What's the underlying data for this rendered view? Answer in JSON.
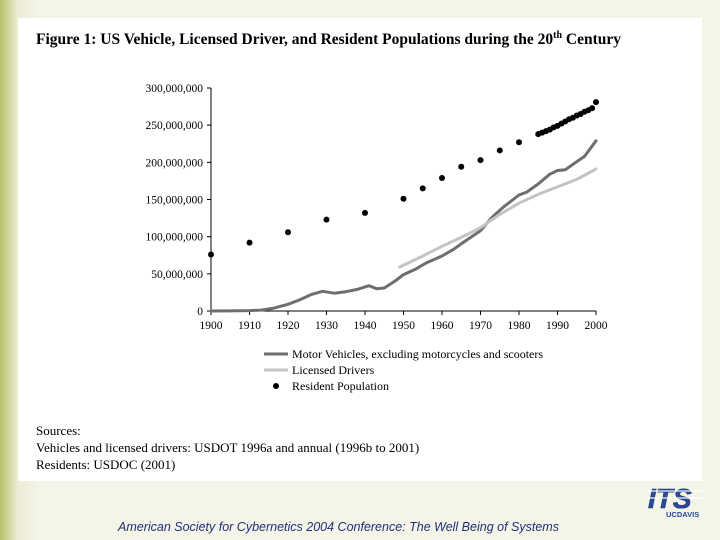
{
  "title": {
    "prefix": "Figure 1: US Vehicle, Licensed Driver, and Resident Populations during the 20",
    "superscript": "th",
    "suffix": " Century"
  },
  "chart_data": {
    "type": "line",
    "title": "Figure 1: US Vehicle, Licensed Driver, and Resident Populations during the 20th Century",
    "xlabel": "",
    "ylabel": "",
    "xlim": [
      1900,
      2000
    ],
    "ylim": [
      0,
      300000000
    ],
    "x_ticks": [
      "1900",
      "1910",
      "1920",
      "1930",
      "1940",
      "1950",
      "1960",
      "1970",
      "1980",
      "1990",
      "2000"
    ],
    "y_ticks": [
      "0",
      "50,000,000",
      "100,000,000",
      "150,000,000",
      "200,000,000",
      "250,000,000",
      "300,000,000"
    ],
    "grid": false,
    "legend_position": "bottom",
    "series": [
      {
        "name": "Motor Vehicles, excluding motorcycles and scooters",
        "style": "line",
        "color": "#6e6e6e",
        "x": [
          1900,
          1905,
          1910,
          1913,
          1916,
          1920,
          1923,
          1926,
          1929,
          1932,
          1935,
          1938,
          1941,
          1943,
          1945,
          1948,
          1950,
          1953,
          1956,
          1960,
          1963,
          1966,
          1970,
          1973,
          1976,
          1980,
          1982,
          1985,
          1988,
          1990,
          1992,
          1995,
          1997,
          2000
        ],
        "y": [
          0,
          100000,
          500000,
          1200000,
          3500000,
          9000000,
          15000000,
          22000000,
          26500000,
          24000000,
          26000000,
          29000000,
          34000000,
          30000000,
          31000000,
          41000000,
          49000000,
          56000000,
          65000000,
          74000000,
          83000000,
          94000000,
          108000000,
          126000000,
          140000000,
          156000000,
          160000000,
          171000000,
          184000000,
          189000000,
          190000000,
          201000000,
          208000000,
          229000000
        ]
      },
      {
        "name": "Licensed Drivers",
        "style": "line",
        "color": "#c4c4c4",
        "x": [
          1949,
          1955,
          1960,
          1965,
          1970,
          1975,
          1980,
          1985,
          1990,
          1995,
          2000
        ],
        "y": [
          59000000,
          74000000,
          87000000,
          99000000,
          112000000,
          130000000,
          145000000,
          157000000,
          167000000,
          177000000,
          191000000
        ],
        "markers": false
      },
      {
        "name": "Resident Population",
        "style": "scatter",
        "color": "#000000",
        "x": [
          1900,
          1910,
          1920,
          1930,
          1940,
          1950,
          1955,
          1960,
          1965,
          1970,
          1975,
          1980,
          1985,
          1986,
          1987,
          1988,
          1989,
          1990,
          1991,
          1992,
          1993,
          1994,
          1995,
          1996,
          1997,
          1998,
          1999,
          2000
        ],
        "y": [
          76000000,
          92000000,
          106000000,
          123000000,
          132000000,
          151000000,
          165000000,
          179000000,
          194000000,
          203000000,
          216000000,
          227000000,
          238000000,
          240000000,
          242000000,
          244000000,
          247000000,
          249000000,
          252000000,
          255000000,
          258000000,
          260000000,
          263000000,
          265000000,
          268000000,
          270000000,
          273000000,
          281000000
        ]
      }
    ]
  },
  "sources": {
    "heading": "Sources:",
    "line1": "Vehicles and licensed drivers: USDOT 1996a and annual (1996b to 2001)",
    "line2": "Residents: USDOC (2001)"
  },
  "footer": {
    "text": "American Society for Cybernetics 2004 Conference: The Well Being of Systems"
  },
  "logo": {
    "lettering": "ITS",
    "sublettering": "UCDAVIS",
    "color": "#2a4a9a"
  }
}
